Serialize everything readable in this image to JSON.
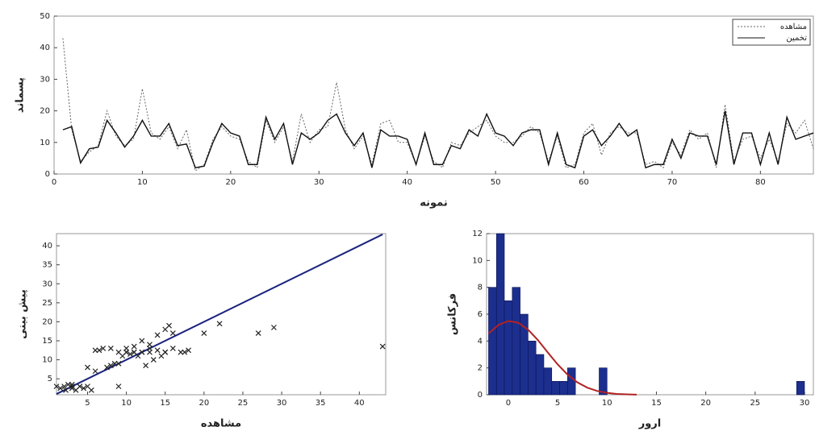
{
  "chart_data": [
    {
      "type": "line",
      "xlabel": "نمونه",
      "ylabel": "پسماند",
      "x": [
        1,
        2,
        3,
        4,
        5,
        6,
        7,
        8,
        9,
        10,
        11,
        12,
        13,
        14,
        15,
        16,
        17,
        18,
        19,
        20,
        21,
        22,
        23,
        24,
        25,
        26,
        27,
        28,
        29,
        30,
        31,
        32,
        33,
        34,
        35,
        36,
        37,
        38,
        39,
        40,
        41,
        42,
        43,
        44,
        45,
        46,
        47,
        48,
        49,
        50,
        51,
        52,
        53,
        54,
        55,
        56,
        57,
        58,
        59,
        60,
        61,
        62,
        63,
        64,
        65,
        66,
        67,
        68,
        69,
        70,
        71,
        72,
        73,
        74,
        75,
        76,
        77,
        78,
        79,
        80,
        81,
        82,
        83,
        84,
        85,
        86
      ],
      "series": [
        {
          "name": "مشاهده",
          "color": "#666666",
          "dashed": true,
          "values": [
            43,
            14,
            4,
            7,
            9,
            20,
            12,
            9,
            11,
            27,
            13,
            11,
            15,
            8,
            14,
            1,
            3,
            11,
            15,
            12,
            11,
            4,
            2,
            17,
            10,
            15,
            4,
            19,
            10,
            14,
            15,
            29,
            14,
            8,
            12,
            3,
            16,
            17,
            10,
            10,
            3,
            12,
            4,
            2,
            10,
            9,
            13,
            15,
            17,
            12,
            10,
            10,
            12,
            15,
            13,
            4,
            12,
            2,
            3,
            13,
            16,
            6,
            13,
            15,
            13,
            13,
            3,
            4,
            2,
            10,
            6,
            14,
            11,
            13,
            2,
            22,
            4,
            11,
            12,
            5,
            11,
            4,
            16,
            13,
            17,
            8
          ]
        },
        {
          "name": "تخمین",
          "color": "#111111",
          "dashed": false,
          "values": [
            14,
            15,
            3.5,
            8,
            8.5,
            17,
            13,
            8.5,
            12,
            17,
            12,
            12,
            16,
            9,
            9.5,
            2,
            2.5,
            10,
            16,
            13,
            12,
            3,
            3,
            18,
            11,
            16,
            3,
            13,
            11,
            13,
            17,
            19,
            13,
            9,
            13,
            2,
            14,
            12,
            12,
            11,
            3,
            13,
            3,
            3,
            9,
            8,
            14,
            12,
            19,
            13,
            12,
            9,
            13,
            14,
            14,
            3,
            13,
            3,
            2,
            12,
            14,
            9,
            12,
            16,
            12,
            14,
            2,
            3,
            3,
            11,
            5,
            13,
            12,
            12,
            3,
            20,
            3,
            13,
            13,
            3,
            13,
            3,
            18,
            11,
            12,
            13
          ]
        }
      ],
      "xlim": [
        0,
        86
      ],
      "xticks": [
        0,
        10,
        20,
        30,
        40,
        50,
        60,
        70,
        80
      ],
      "ylim": [
        0,
        50
      ],
      "yticks": [
        0,
        10,
        20,
        30,
        40,
        50
      ],
      "legend": "upper right",
      "grid": false
    },
    {
      "type": "scatter",
      "xlabel": "مشاهده",
      "ylabel": "پیش بینی",
      "color": "#222222",
      "x": [
        1,
        1.5,
        2,
        2.2,
        2.5,
        3,
        3,
        3.5,
        4,
        4.5,
        5,
        5.5,
        6,
        6.5,
        7,
        7.5,
        8,
        8.5,
        9,
        9,
        9.5,
        10,
        10,
        10.5,
        11,
        11,
        11.5,
        12,
        12,
        12.5,
        13,
        13,
        13.5,
        14,
        14,
        14.5,
        15,
        15,
        15.5,
        16,
        16,
        17,
        17.5,
        18,
        20,
        22,
        27,
        29,
        43,
        3,
        4,
        5,
        6,
        9,
        12,
        13,
        15,
        8,
        10,
        11
      ],
      "values": [
        3,
        2.5,
        3,
        2,
        3.5,
        2.5,
        3,
        2,
        3,
        2.5,
        3,
        2,
        12.5,
        12.5,
        13,
        8,
        8.5,
        9,
        12,
        3,
        11,
        12,
        13,
        11.5,
        12,
        13.5,
        11,
        12,
        15,
        8.5,
        12,
        14,
        10,
        12.5,
        16.5,
        11,
        18,
        12,
        19,
        13,
        17,
        12,
        12,
        12.5,
        17,
        19.5,
        17,
        18.5,
        13.5,
        3.5,
        3,
        8,
        7,
        9,
        12,
        13,
        12,
        13,
        12,
        12
      ],
      "fit_line": {
        "x": [
          1,
          43
        ],
        "values": [
          1,
          43
        ],
        "color": "#1a237e"
      },
      "xlim": [
        1,
        43.4
      ],
      "xticks": [
        5,
        10,
        15,
        20,
        25,
        30,
        35,
        40
      ],
      "ylim": [
        0.8,
        43.2
      ],
      "yticks": [
        5,
        10,
        15,
        20,
        25,
        30,
        35,
        40
      ],
      "grid": false
    },
    {
      "type": "histogram",
      "xlabel": "ارور",
      "ylabel": "فرکانس",
      "color": "#1c2f8f",
      "bins": [
        -2,
        -1.2,
        -0.4,
        0.4,
        1.2,
        2,
        2.8,
        3.6,
        4.4,
        5.2,
        6,
        6.8,
        7.6,
        8.4,
        9.2,
        10,
        10.8,
        11.6,
        12.4,
        13.2,
        14,
        14.8,
        15.6,
        16.4,
        17.2,
        18,
        18.8,
        19.6,
        20.4,
        21.2,
        22,
        22.8,
        23.6,
        24.4,
        25.2,
        26,
        26.8,
        27.6,
        28.4,
        29.2,
        30
      ],
      "counts": [
        8,
        12,
        7,
        8,
        6,
        4,
        3,
        2,
        1,
        1,
        2,
        0,
        0,
        0,
        2,
        0,
        0,
        0,
        0,
        0,
        0,
        0,
        0,
        0,
        0,
        0,
        0,
        0,
        0,
        0,
        0,
        0,
        0,
        0,
        0,
        0,
        0,
        0,
        0,
        1
      ],
      "curve": {
        "x": [
          -2,
          -1,
          0,
          1,
          2,
          3,
          4,
          5,
          6,
          7,
          8,
          9,
          10,
          11,
          12,
          13
        ],
        "values": [
          4.56,
          5.2,
          5.49,
          5.37,
          4.85,
          4.07,
          3.15,
          2.26,
          1.5,
          0.92,
          0.53,
          0.28,
          0.14,
          0.06,
          0.03,
          0.01
        ],
        "color": "#b22222"
      },
      "xlim": [
        -2.2,
        30.9
      ],
      "xticks": [
        0,
        5,
        10,
        15,
        20,
        25,
        30
      ],
      "ylim": [
        0,
        12
      ],
      "yticks": [
        0,
        2,
        4,
        6,
        8,
        10,
        12
      ],
      "grid": false
    }
  ]
}
